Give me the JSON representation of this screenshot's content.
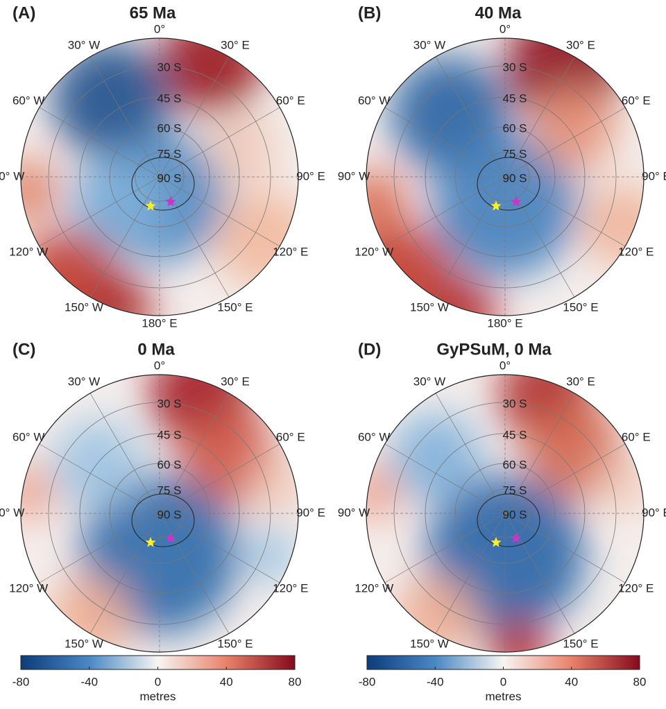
{
  "panels": [
    {
      "label": "(A)",
      "title": "65 Ma"
    },
    {
      "label": "(B)",
      "title": "40 Ma"
    },
    {
      "label": "(C)",
      "title": "0 Ma"
    },
    {
      "label": "(D)",
      "title": "GyPSuM, 0 Ma"
    }
  ],
  "longitude_labels": [
    "0°",
    "30° E",
    "60° E",
    "90° E",
    "120° E",
    "150° E",
    "180° E",
    "150° W",
    "120° W",
    "90° W",
    "60° W",
    "30° W"
  ],
  "latitude_labels": [
    "30 S",
    "45 S",
    "60 S",
    "75 S",
    "90 S"
  ],
  "colorbar": {
    "ticks": [
      -80,
      -40,
      0,
      40,
      80
    ],
    "label": "metres"
  }
}
